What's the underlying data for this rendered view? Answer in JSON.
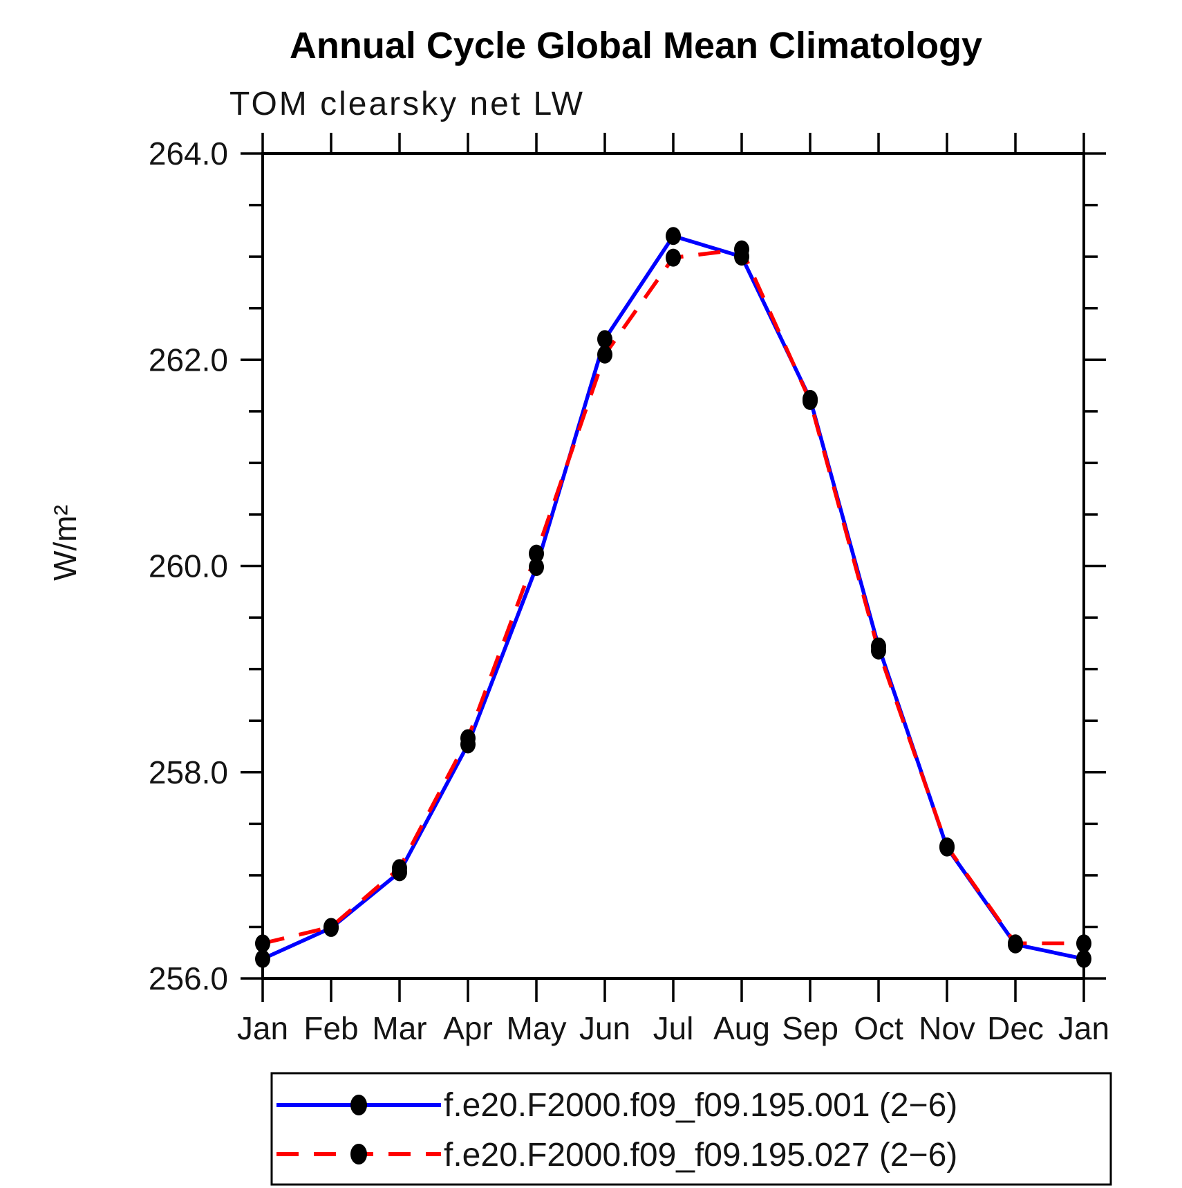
{
  "title": "Annual Cycle Global Mean Climatology",
  "subtitle": "TOM clearsky net LW",
  "chart_data": {
    "type": "line",
    "title": "Annual Cycle Global Mean Climatology",
    "subtitle": "TOM clearsky net LW",
    "xlabel": "",
    "ylabel": "W/m²",
    "categories": [
      "Jan",
      "Feb",
      "Mar",
      "Apr",
      "May",
      "Jun",
      "Jul",
      "Aug",
      "Sep",
      "Oct",
      "Nov",
      "Dec",
      "Jan"
    ],
    "ylim": [
      256.0,
      264.0
    ],
    "ytick_major_step": 2.0,
    "ytick_minor_step": 0.5,
    "ytick_labels": [
      "256.0",
      "258.0",
      "260.0",
      "262.0",
      "264.0"
    ],
    "grid": false,
    "legend_position": "bottom",
    "marker": "filled-circle",
    "marker_color": "#000000",
    "series": [
      {
        "name": "f.e20.F2000.f09_f09.195.001 (2−6)",
        "color": "#0000ff",
        "style": "solid",
        "values": [
          256.19,
          256.49,
          257.03,
          258.27,
          259.99,
          262.2,
          263.2,
          263.0,
          261.62,
          259.22,
          257.27,
          256.33,
          256.19
        ]
      },
      {
        "name": "f.e20.F2000.f09_f09.195.027 (2−6)",
        "color": "#ff0000",
        "style": "dashed",
        "values": [
          256.34,
          256.5,
          257.07,
          258.33,
          260.12,
          262.05,
          262.99,
          263.07,
          261.6,
          259.18,
          257.28,
          256.34,
          256.34
        ]
      }
    ]
  }
}
